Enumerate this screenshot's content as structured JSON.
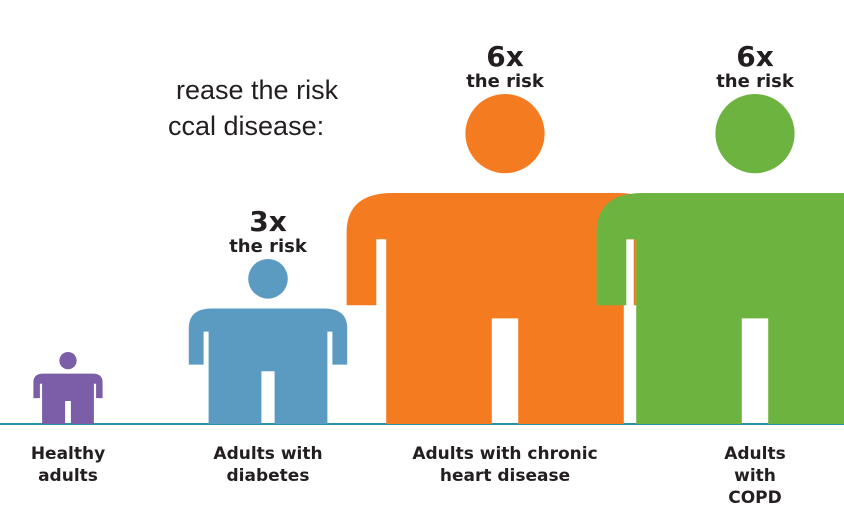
{
  "intro": {
    "line1": "rease the risk",
    "line2": "ccal disease:"
  },
  "chart_data": {
    "type": "bar",
    "categories": [
      "Healthy\nadults",
      "Adults with\ndiabetes",
      "Adults with chronic\nheart disease",
      "Adults with\nCOPD"
    ],
    "values": [
      1,
      3,
      6,
      6
    ],
    "risk_labels": [
      "",
      "3x",
      "6x",
      "6x"
    ],
    "risk_sublabel": "the risk",
    "colors": [
      "#7b5ea7",
      "#5b9bc2",
      "#f47b20",
      "#6db33f"
    ],
    "baseline_color": "#2a8fa8"
  }
}
